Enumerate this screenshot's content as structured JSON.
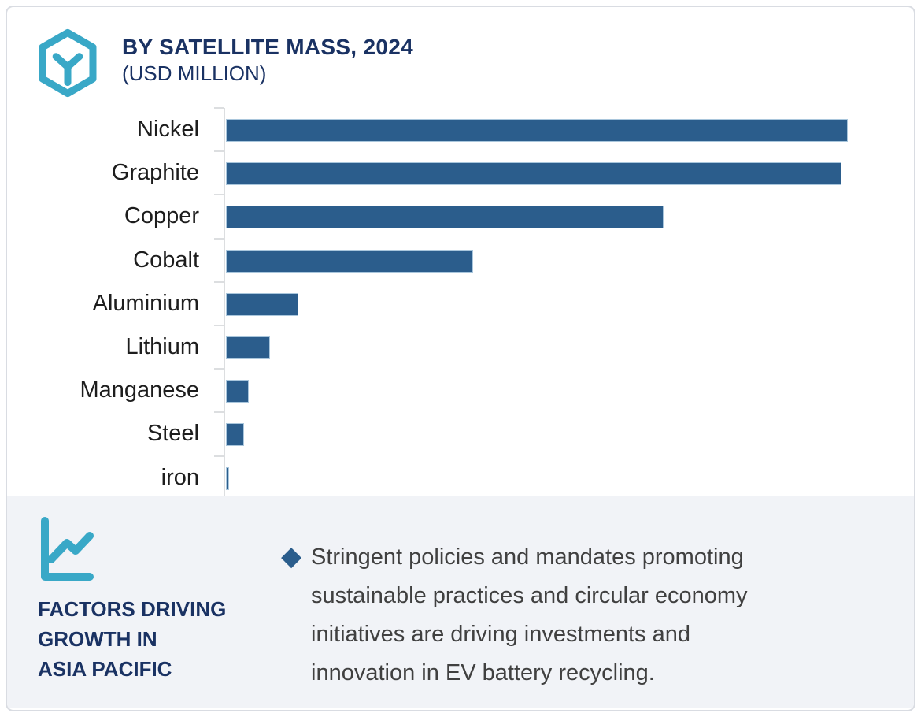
{
  "header": {
    "logo_name": "hexagon-cube-logo"
  },
  "chart_data": {
    "type": "bar",
    "orientation": "horizontal",
    "title": "BY SATELLITE MASS, 2024",
    "subtitle": "(USD MILLION)",
    "categories": [
      "Nickel",
      "Graphite",
      "Copper",
      "Cobalt",
      "Aluminium",
      "Lithium",
      "Manganese",
      "Steel",
      "iron"
    ],
    "values": [
      100,
      99,
      70.4,
      39.7,
      11.6,
      7.1,
      3.7,
      2.9,
      0.5
    ],
    "values_unit": "relative, % of longest bar (no numeric axis labels shown)",
    "value_axis_labels_visible": false,
    "grid": false,
    "legend": false,
    "bar_color": "#2b5d8c"
  },
  "footer": {
    "icon_name": "line-chart-icon",
    "heading_lines": [
      "FACTORS DRIVING",
      "GROWTH IN",
      "ASIA PACIFIC"
    ],
    "bullet_marker": "◆",
    "bullet_text": "Stringent policies and mandates promoting sustainable practices and circular economy initiatives are driving investments and innovation in EV battery recycling.",
    "bullet_text_lines": [
      "Stringent policies and mandates promoting",
      "sustainable practices and circular economy",
      "initiatives are driving investments and",
      "innovation in EV battery recycling."
    ]
  },
  "colors": {
    "accent_teal": "#39a8c7",
    "navy": "#1a3263",
    "bar_blue": "#2b5d8c",
    "panel_background": "#f1f3f7",
    "card_border": "#d9dce2",
    "body_text": "#404040"
  }
}
